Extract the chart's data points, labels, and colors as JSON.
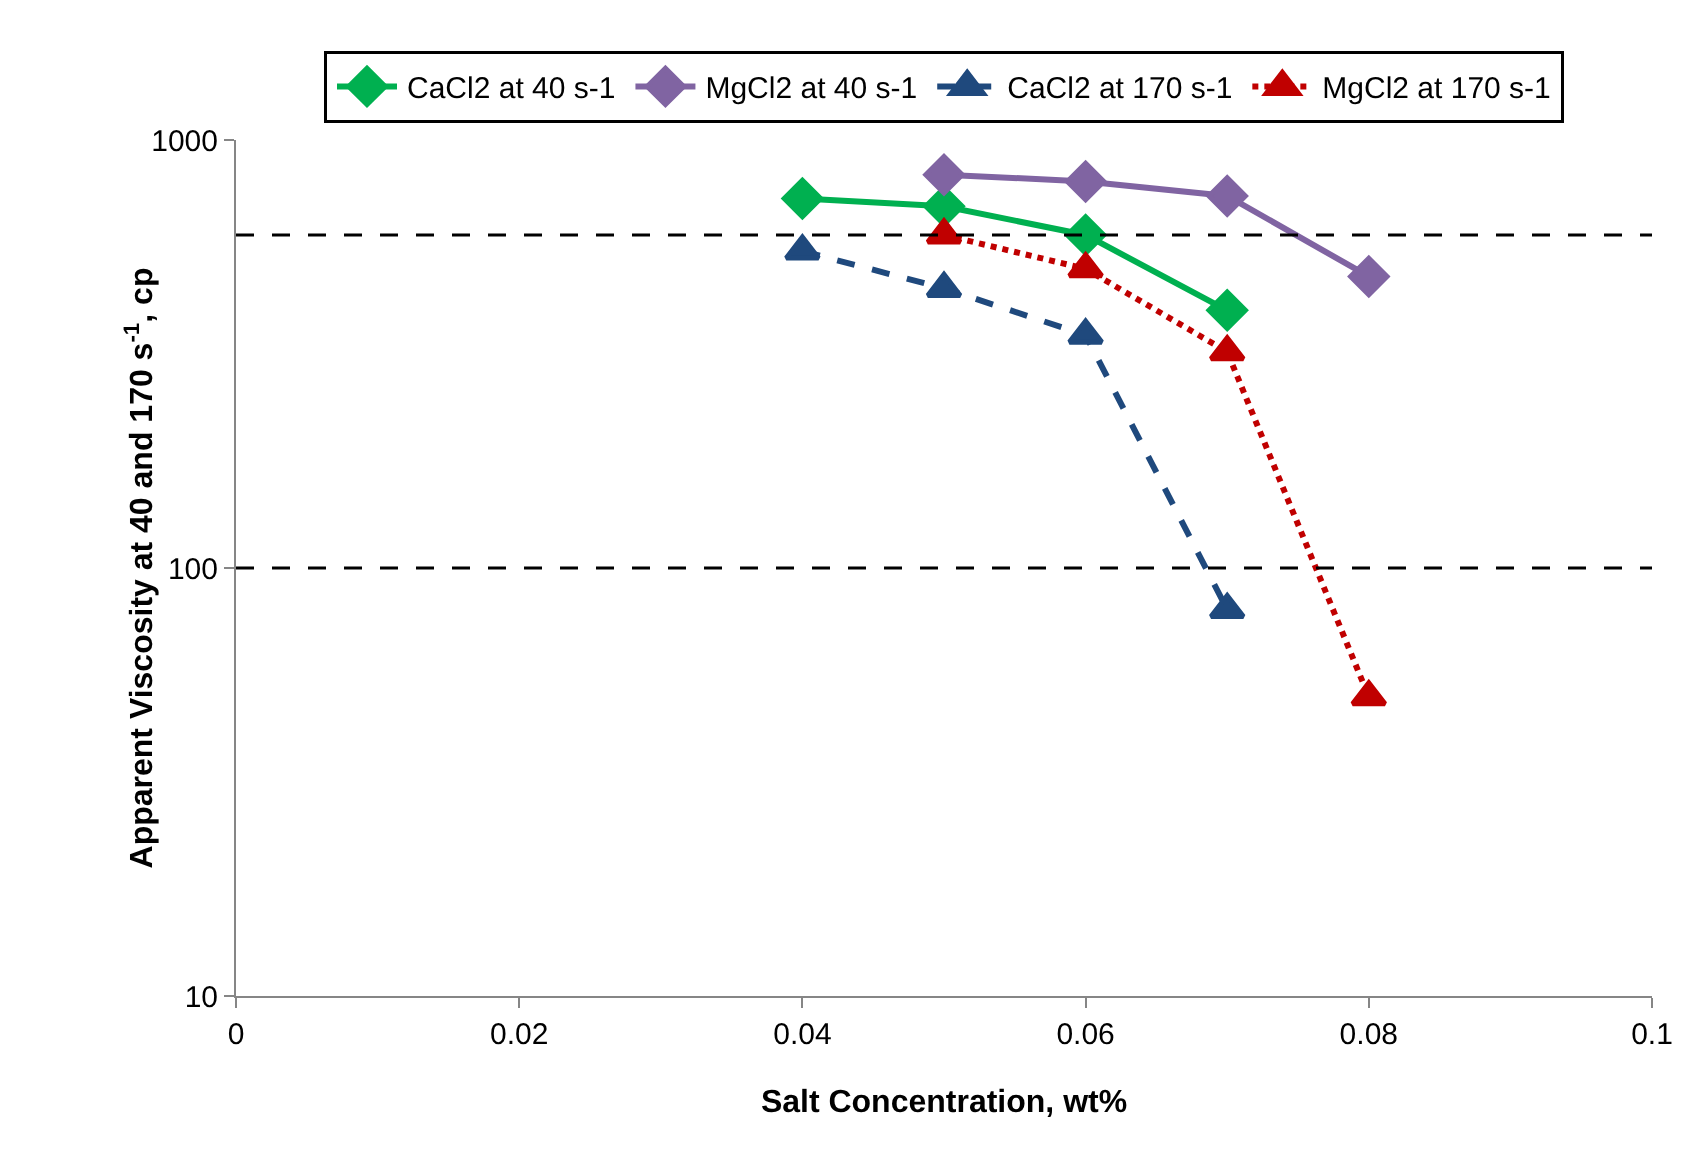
{
  "chart_data": {
    "type": "line",
    "xlabel": "Salt Concentration, wt%",
    "ylabel": "Apparent Viscosity at 40 and 170 s$^{-1}$, cp",
    "log": "y",
    "xlim": [
      0,
      0.1
    ],
    "xticks": [
      0,
      0.02,
      0.04,
      0.06,
      0.08,
      0.1
    ],
    "ylim": [
      10,
      1000
    ],
    "yticks": [
      10,
      100,
      1000
    ],
    "grid": false,
    "legend": "top",
    "series": [
      {
        "name": "CaCl2 at 40 s-1",
        "color": "#00b050",
        "marker": "diamond",
        "line_style": "solid",
        "x": [
          0.04,
          0.05,
          0.06,
          0.07
        ],
        "values": [
          730,
          700,
          600,
          400
        ]
      },
      {
        "name": "MgCl2 at 40 s-1",
        "color": "#8064a2",
        "marker": "diamond",
        "line_style": "solid",
        "x": [
          0.05,
          0.06,
          0.07,
          0.08
        ],
        "values": [
          830,
          800,
          740,
          480
        ]
      },
      {
        "name": "CaCl2 at 170 s-1",
        "color": "#1f497d",
        "marker": "triangle",
        "line_style": "dashed",
        "x": [
          0.04,
          0.05,
          0.06,
          0.07
        ],
        "values": [
          550,
          450,
          350,
          80
        ]
      },
      {
        "name": "MgCl2 at 170 s-1",
        "color": "#c00000",
        "marker": "triangle",
        "line_style": "dotted",
        "x": [
          0.05,
          0.06,
          0.07,
          0.08
        ],
        "values": [
          600,
          500,
          320,
          50
        ]
      }
    ],
    "ref_lines": [
      {
        "axis": "y",
        "value": 600,
        "color": "#000000",
        "line_style": "dashed"
      },
      {
        "axis": "y",
        "value": 100,
        "color": "#000000",
        "line_style": "dashed"
      }
    ]
  }
}
